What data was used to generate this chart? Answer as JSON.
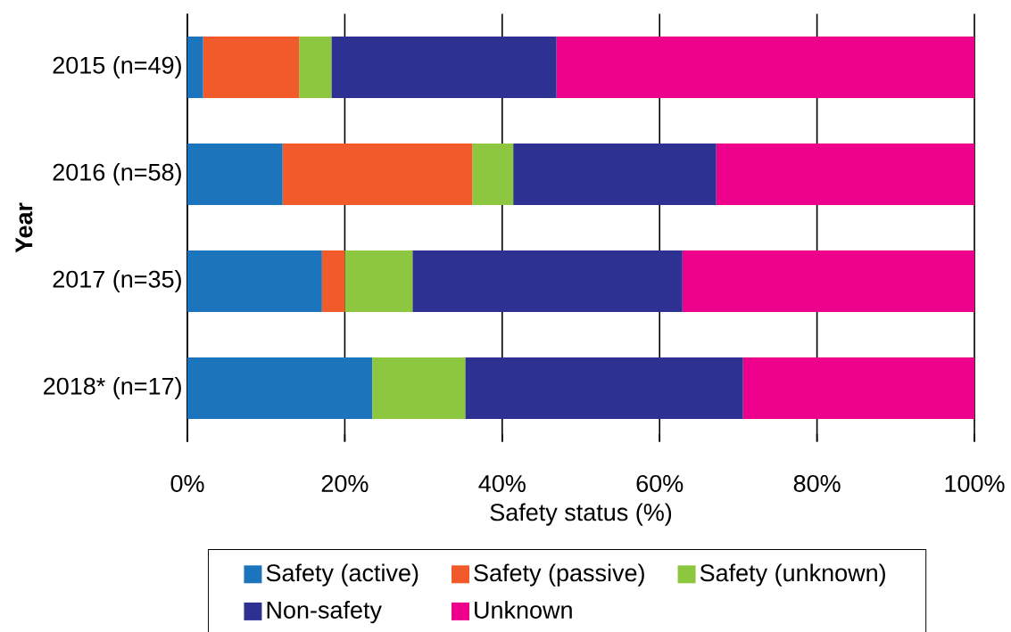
{
  "chart_data": {
    "type": "bar",
    "orientation": "horizontal",
    "stacked": true,
    "xlabel": "Safety status (%)",
    "ylabel": "Year",
    "categories": [
      "2015 (n=49)",
      "2016 (n=58)",
      "2017 (n=35)",
      "2018* (n=17)"
    ],
    "series": [
      {
        "name": "Safety (active)",
        "color": "#1c75bc",
        "values": [
          2.0,
          12.1,
          17.1,
          23.5
        ]
      },
      {
        "name": "Safety (passive)",
        "color": "#f15a2b",
        "values": [
          12.2,
          24.1,
          2.9,
          0
        ]
      },
      {
        "name": "Safety (unknown)",
        "color": "#8dc63f",
        "values": [
          4.1,
          5.2,
          8.6,
          11.8
        ]
      },
      {
        "name": "Non-safety",
        "color": "#2e3192",
        "values": [
          28.6,
          25.8,
          34.3,
          35.3
        ]
      },
      {
        "name": "Unknown",
        "color": "#ec008c",
        "values": [
          53.1,
          32.8,
          37.1,
          29.4
        ]
      }
    ],
    "xlim": [
      0,
      100
    ],
    "xticks": [
      {
        "value": 0,
        "label": "0%"
      },
      {
        "value": 20,
        "label": "20%"
      },
      {
        "value": 40,
        "label": "40%"
      },
      {
        "value": 60,
        "label": "60%"
      },
      {
        "value": 80,
        "label": "80%"
      },
      {
        "value": 100,
        "label": "100%"
      }
    ],
    "grid": "x",
    "legend": "bottom"
  }
}
